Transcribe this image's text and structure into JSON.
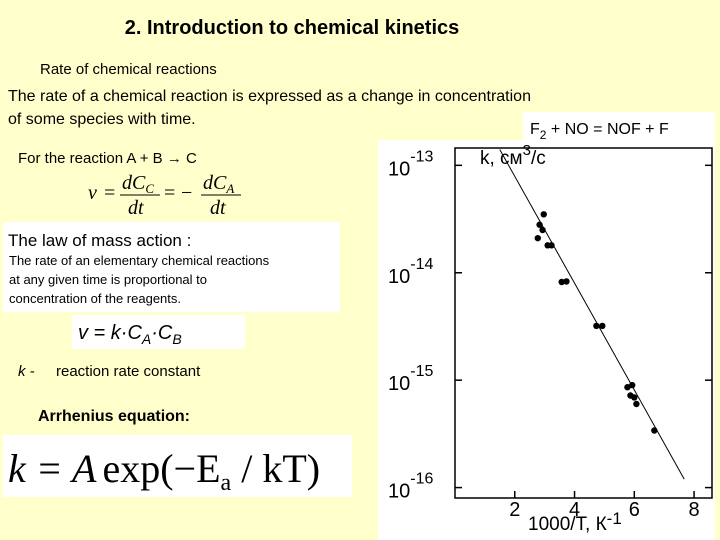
{
  "header": {
    "title": "2. Introduction to chemical kinetics",
    "subtitle": "Rate of  chemical reactions"
  },
  "definition": [
    "The rate of a chemical reaction is expressed as a change in concentration",
    "of some species with time."
  ],
  "reaction": {
    "text": "For the reaction A + B → C",
    "formula": [
      "v",
      "=",
      "dC",
      "C",
      "dt",
      "=",
      "−",
      "dC",
      "A",
      "dt"
    ]
  },
  "law": {
    "title": "The law of mass action :",
    "lines": [
      "The rate of an elementary chemical reactions",
      "at any given time is proportional to",
      "concentration of the reagents."
    ],
    "formula": [
      "v = k·C",
      "A",
      "·C",
      "B"
    ]
  },
  "constant": {
    "symbol": "k -",
    "text": "reaction rate constant"
  },
  "arrhenius": {
    "title": "Arrhenius equation:",
    "formula": [
      "k = A",
      "exp(−E",
      "a",
      " / kT)"
    ]
  },
  "chart_data": {
    "type": "scatter",
    "title": [
      "F",
      "2",
      " + NO = NOF + F"
    ],
    "y_label": [
      "k, см",
      "3",
      "/c"
    ],
    "x_label": [
      "1000/T, К",
      "-1"
    ],
    "y_log": true,
    "xlim": [
      0,
      8.6
    ],
    "ylim": [
      8e-17,
      1.45e-13
    ],
    "xticks": [
      2,
      4,
      6,
      8
    ],
    "yticks": [
      {
        "value": 1e-13,
        "label": "10",
        "exponent": "-13"
      },
      {
        "value": 1e-14,
        "label": "10",
        "exponent": "-14"
      },
      {
        "value": 1e-15,
        "label": "10",
        "exponent": "-15"
      },
      {
        "value": 1e-16,
        "label": "10",
        "exponent": "-16"
      }
    ],
    "series": [
      {
        "color": "#000000",
        "x": [
          2.97,
          2.83,
          2.93,
          2.77,
          3.1,
          3.23,
          3.57,
          3.73,
          4.73,
          4.93,
          5.77,
          5.93,
          5.87,
          6.0,
          6.07,
          6.67
        ],
        "values": [
          3.5e-14,
          2.8e-14,
          2.5e-14,
          2.1e-14,
          1.8e-14,
          1.8e-14,
          8.2e-15,
          8.3e-15,
          3.2e-15,
          3.2e-15,
          8.6e-16,
          9e-16,
          7.2e-16,
          6.9e-16,
          6e-16,
          3.4e-16
        ]
      }
    ],
    "fit": {
      "x": [
        1.5,
        7.67
      ],
      "values": [
        1.4e-13,
        1.2e-16
      ]
    }
  }
}
